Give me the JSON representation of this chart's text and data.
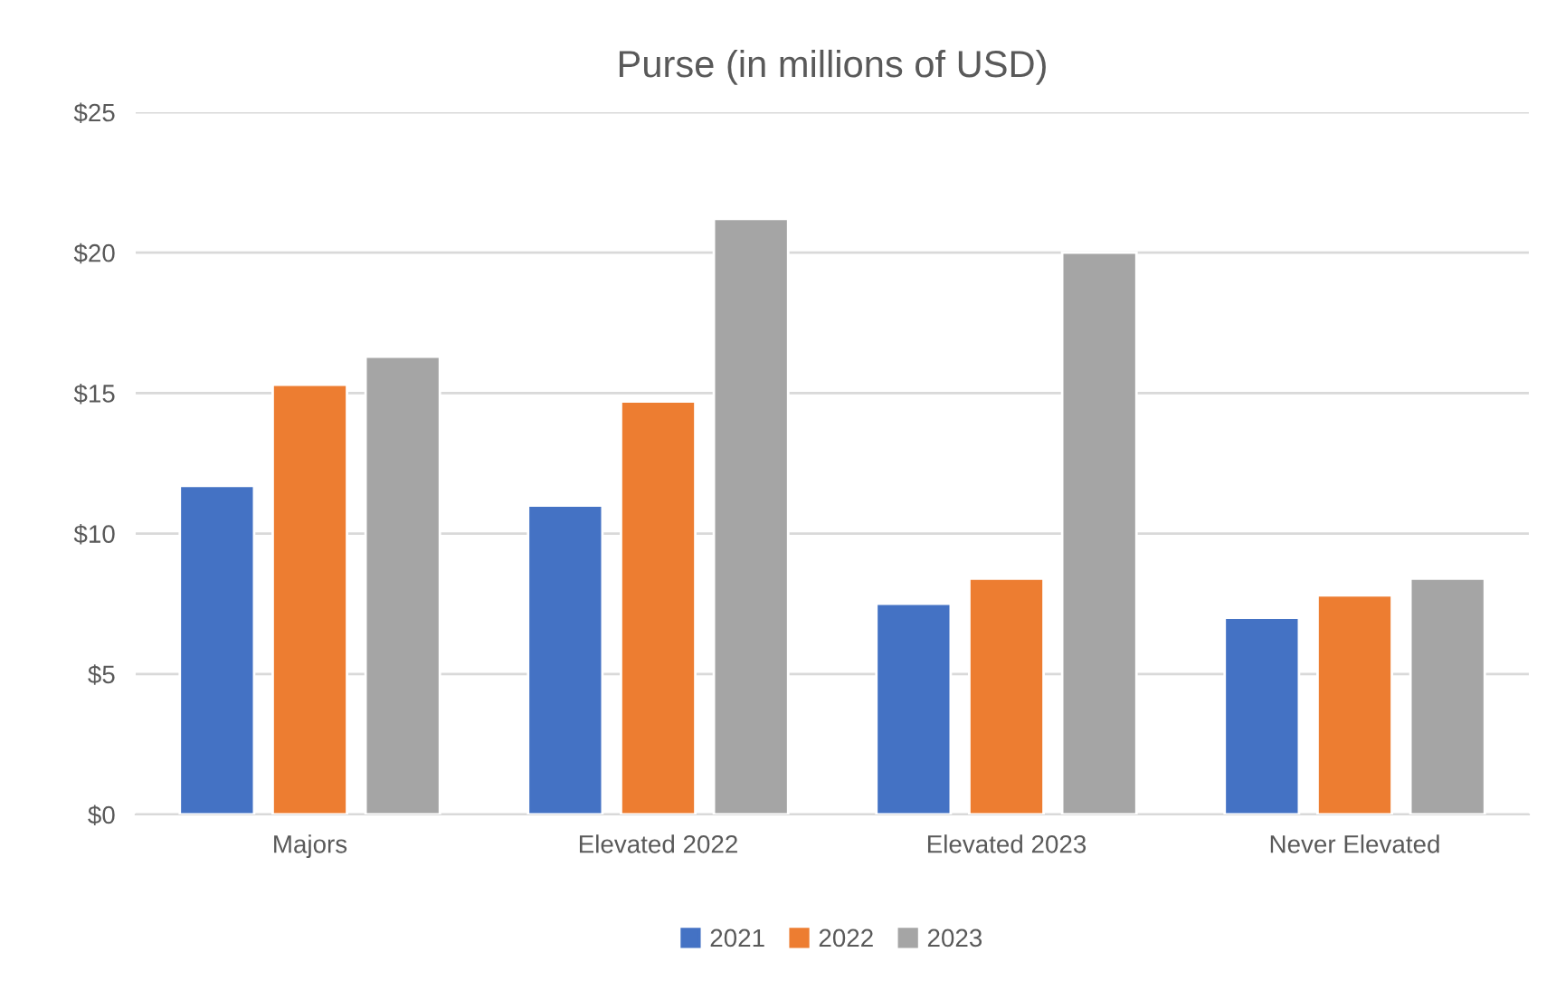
{
  "chart_data": {
    "type": "bar",
    "title": "Purse (in millions of USD)",
    "categories": [
      "Majors",
      "Elevated 2022",
      "Elevated 2023",
      "Never Elevated"
    ],
    "series": [
      {
        "name": "2021",
        "color": "#4472c4",
        "values": [
          11.7,
          11.0,
          7.5,
          7.0
        ]
      },
      {
        "name": "2022",
        "color": "#ed7d31",
        "values": [
          15.3,
          14.7,
          8.4,
          7.8
        ]
      },
      {
        "name": "2023",
        "color": "#a5a5a5",
        "values": [
          16.3,
          21.2,
          20.0,
          8.4
        ]
      }
    ],
    "ylim": [
      0,
      25
    ],
    "yticks": [
      {
        "value": 0,
        "label": "$0"
      },
      {
        "value": 5,
        "label": "$5"
      },
      {
        "value": 10,
        "label": "$10"
      },
      {
        "value": 15,
        "label": "$15"
      },
      {
        "value": 20,
        "label": "$20"
      },
      {
        "value": 25,
        "label": "$25"
      }
    ],
    "grid": "y",
    "legend": "bottom"
  }
}
